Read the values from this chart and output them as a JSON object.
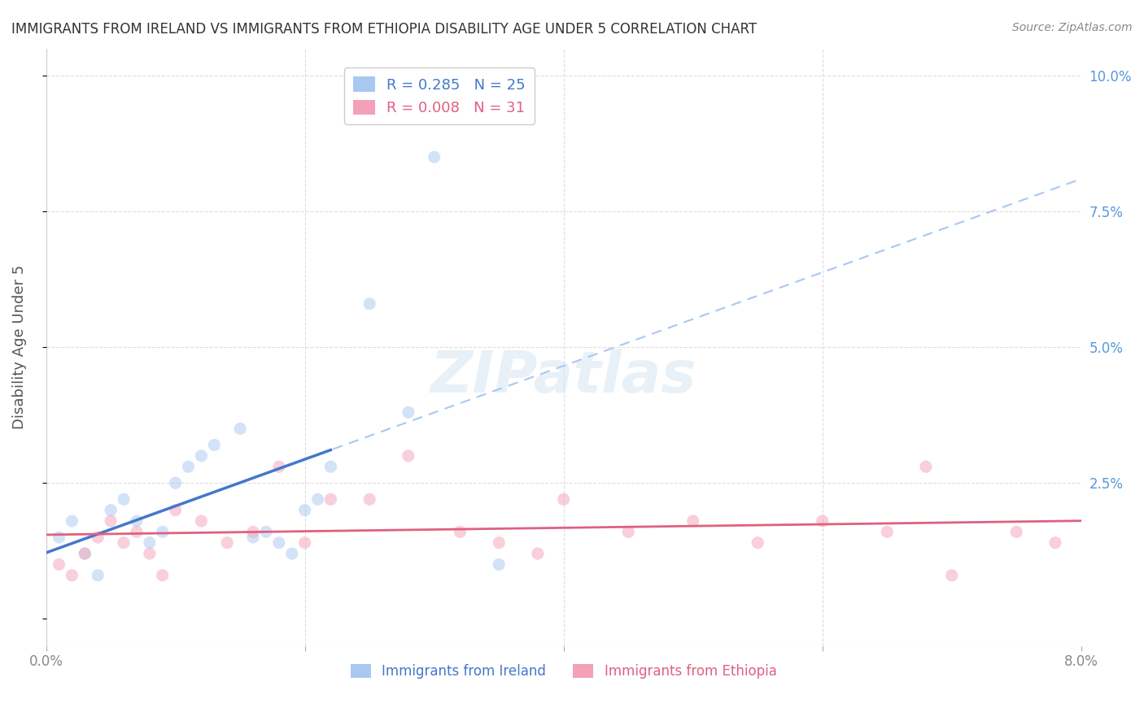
{
  "title": "IMMIGRANTS FROM IRELAND VS IMMIGRANTS FROM ETHIOPIA DISABILITY AGE UNDER 5 CORRELATION CHART",
  "source": "Source: ZipAtlas.com",
  "ylabel": "Disability Age Under 5",
  "xlim": [
    0.0,
    0.08
  ],
  "ylim": [
    -0.005,
    0.105
  ],
  "ireland_R": 0.285,
  "ireland_N": 25,
  "ethiopia_R": 0.008,
  "ethiopia_N": 31,
  "ireland_color": "#a8c8f0",
  "ireland_line_color": "#4477cc",
  "ireland_dashed_color": "#a8c8f0",
  "ethiopia_color": "#f4a0b8",
  "ethiopia_line_color": "#e06080",
  "background_color": "#ffffff",
  "grid_color": "#dddddd",
  "right_axis_color": "#5599dd",
  "legend_label_ireland": "Immigrants from Ireland",
  "legend_label_ethiopia": "Immigrants from Ethiopia",
  "ireland_x": [
    0.001,
    0.002,
    0.003,
    0.004,
    0.005,
    0.006,
    0.007,
    0.008,
    0.009,
    0.01,
    0.011,
    0.012,
    0.013,
    0.015,
    0.016,
    0.017,
    0.018,
    0.019,
    0.02,
    0.021,
    0.022,
    0.025,
    0.028,
    0.03,
    0.035
  ],
  "ireland_y": [
    0.015,
    0.018,
    0.012,
    0.008,
    0.02,
    0.022,
    0.018,
    0.014,
    0.016,
    0.025,
    0.028,
    0.03,
    0.032,
    0.035,
    0.015,
    0.016,
    0.014,
    0.012,
    0.02,
    0.022,
    0.028,
    0.058,
    0.038,
    0.085,
    0.01
  ],
  "ethiopia_x": [
    0.001,
    0.002,
    0.003,
    0.004,
    0.005,
    0.006,
    0.007,
    0.008,
    0.009,
    0.01,
    0.012,
    0.014,
    0.016,
    0.018,
    0.02,
    0.022,
    0.025,
    0.028,
    0.032,
    0.035,
    0.038,
    0.04,
    0.045,
    0.05,
    0.055,
    0.06,
    0.065,
    0.068,
    0.07,
    0.075,
    0.078
  ],
  "ethiopia_y": [
    0.01,
    0.008,
    0.012,
    0.015,
    0.018,
    0.014,
    0.016,
    0.012,
    0.008,
    0.02,
    0.018,
    0.014,
    0.016,
    0.028,
    0.014,
    0.022,
    0.022,
    0.03,
    0.016,
    0.014,
    0.012,
    0.022,
    0.016,
    0.018,
    0.014,
    0.018,
    0.016,
    0.028,
    0.008,
    0.016,
    0.014
  ],
  "watermark": "ZIPatlas",
  "marker_size": 120,
  "marker_alpha": 0.5
}
